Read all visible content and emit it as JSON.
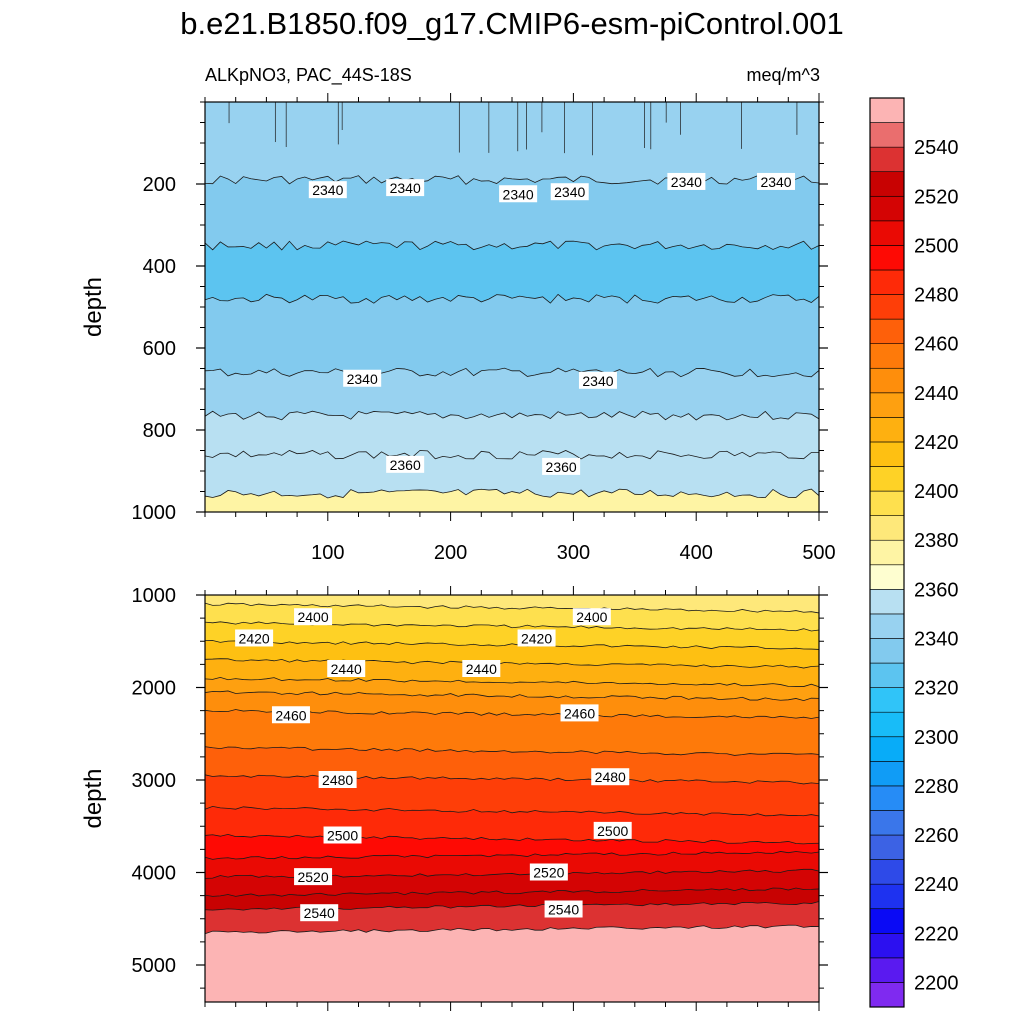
{
  "figure": {
    "title": "b.e21.B1850.f09_g17.CMIP6-esm-piControl.001",
    "left_string": "ALKpNO3, PAC_44S-18S",
    "right_string": "meq/m^3"
  },
  "chart_data": [
    {
      "type": "contour",
      "panel": "upper",
      "title": "",
      "xlabel": "",
      "ylabel": "depth",
      "xlim": [
        0,
        500
      ],
      "ylim": [
        1000,
        0
      ],
      "xticks": [
        100,
        200,
        300,
        400,
        500
      ],
      "yticks": [
        200,
        400,
        600,
        800,
        1000
      ],
      "bands": [
        {
          "range": [
            0,
            190
          ],
          "value": 2345
        },
        {
          "range": [
            190,
            350
          ],
          "value": 2335
        },
        {
          "range": [
            350,
            480
          ],
          "value": 2325
        },
        {
          "range": [
            480,
            660
          ],
          "value": 2335
        },
        {
          "range": [
            660,
            765
          ],
          "value": 2345
        },
        {
          "range": [
            765,
            860
          ],
          "value": 2350
        },
        {
          "range": [
            860,
            955
          ],
          "value": 2355
        },
        {
          "range": [
            955,
            1000
          ],
          "value": 2375
        }
      ],
      "contour_labels": [
        {
          "x": 100,
          "y": 215,
          "text": "2340"
        },
        {
          "x": 163,
          "y": 210,
          "text": "2340"
        },
        {
          "x": 255,
          "y": 225,
          "text": "2340"
        },
        {
          "x": 297,
          "y": 220,
          "text": "2340"
        },
        {
          "x": 392,
          "y": 195,
          "text": "2340"
        },
        {
          "x": 465,
          "y": 195,
          "text": "2340"
        },
        {
          "x": 128,
          "y": 675,
          "text": "2340"
        },
        {
          "x": 320,
          "y": 680,
          "text": "2340"
        },
        {
          "x": 163,
          "y": 885,
          "text": "2360"
        },
        {
          "x": 290,
          "y": 890,
          "text": "2360"
        }
      ]
    },
    {
      "type": "contour",
      "panel": "lower",
      "title": "",
      "xlabel": "",
      "ylabel": "depth",
      "xlim": [
        0,
        500
      ],
      "ylim": [
        5400,
        1000
      ],
      "yticks": [
        1000,
        2000,
        3000,
        4000,
        5000
      ],
      "bands": [
        {
          "range": [
            1000,
            1100
          ],
          "value": 2385
        },
        {
          "range": [
            1100,
            1300
          ],
          "value": 2395
        },
        {
          "range": [
            1300,
            1500
          ],
          "value": 2405
        },
        {
          "range": [
            1500,
            1700
          ],
          "value": 2415
        },
        {
          "range": [
            1700,
            1900
          ],
          "value": 2425
        },
        {
          "range": [
            1900,
            2050
          ],
          "value": 2435
        },
        {
          "range": [
            2050,
            2250
          ],
          "value": 2445
        },
        {
          "range": [
            2250,
            2650
          ],
          "value": 2455
        },
        {
          "range": [
            2650,
            2950
          ],
          "value": 2465
        },
        {
          "range": [
            2950,
            3300
          ],
          "value": 2475
        },
        {
          "range": [
            3300,
            3600
          ],
          "value": 2485
        },
        {
          "range": [
            3600,
            3850
          ],
          "value": 2495
        },
        {
          "range": [
            3850,
            4050
          ],
          "value": 2505
        },
        {
          "range": [
            4050,
            4250
          ],
          "value": 2515
        },
        {
          "range": [
            4250,
            4400
          ],
          "value": 2525
        },
        {
          "range": [
            4400,
            4650
          ],
          "value": 2535
        },
        {
          "range": [
            4650,
            5400
          ],
          "value": 2555
        }
      ],
      "contour_labels": [
        {
          "x": 88,
          "y": 1240,
          "text": "2400"
        },
        {
          "x": 315,
          "y": 1240,
          "text": "2400"
        },
        {
          "x": 40,
          "y": 1470,
          "text": "2420"
        },
        {
          "x": 270,
          "y": 1470,
          "text": "2420"
        },
        {
          "x": 115,
          "y": 1800,
          "text": "2440"
        },
        {
          "x": 225,
          "y": 1800,
          "text": "2440"
        },
        {
          "x": 70,
          "y": 2300,
          "text": "2460"
        },
        {
          "x": 305,
          "y": 2280,
          "text": "2460"
        },
        {
          "x": 108,
          "y": 3000,
          "text": "2480"
        },
        {
          "x": 330,
          "y": 2970,
          "text": "2480"
        },
        {
          "x": 112,
          "y": 3600,
          "text": "2500"
        },
        {
          "x": 332,
          "y": 3550,
          "text": "2500"
        },
        {
          "x": 88,
          "y": 4050,
          "text": "2520"
        },
        {
          "x": 280,
          "y": 4000,
          "text": "2520"
        },
        {
          "x": 93,
          "y": 4440,
          "text": "2540"
        },
        {
          "x": 292,
          "y": 4400,
          "text": "2540"
        }
      ]
    }
  ],
  "colorbar": {
    "levels": [
      2200,
      2210,
      2220,
      2230,
      2240,
      2250,
      2260,
      2270,
      2280,
      2290,
      2300,
      2310,
      2320,
      2330,
      2340,
      2350,
      2360,
      2370,
      2380,
      2390,
      2400,
      2410,
      2420,
      2430,
      2440,
      2450,
      2460,
      2470,
      2480,
      2490,
      2500,
      2510,
      2520,
      2530,
      2540,
      2550
    ],
    "labels": [
      "2200",
      "2220",
      "2240",
      "2260",
      "2280",
      "2300",
      "2320",
      "2340",
      "2360",
      "2380",
      "2400",
      "2420",
      "2440",
      "2460",
      "2480",
      "2500",
      "2520",
      "2540"
    ],
    "colors": [
      "#7f2af0",
      "#5a1af0",
      "#2c10f0",
      "#0a0af5",
      "#1e32f0",
      "#2e4ae8",
      "#3c62e4",
      "#3a76ea",
      "#268cf6",
      "#109cf6",
      "#08acf8",
      "#18bcf8",
      "#30c4f8",
      "#5cc4f0",
      "#82caee",
      "#98d2f0",
      "#b8e0f2",
      "#fefed0",
      "#fef4a4",
      "#fee87a",
      "#fee04e",
      "#fed226",
      "#fec012",
      "#feb010",
      "#fea010",
      "#fe8e0c",
      "#fe7a0a",
      "#fe600a",
      "#fe3e08",
      "#fe2a08",
      "#fe0a04",
      "#ea0a04",
      "#d40404",
      "#c80202",
      "#dc3232",
      "#ea6e6e",
      "#fcb4b4"
    ]
  }
}
